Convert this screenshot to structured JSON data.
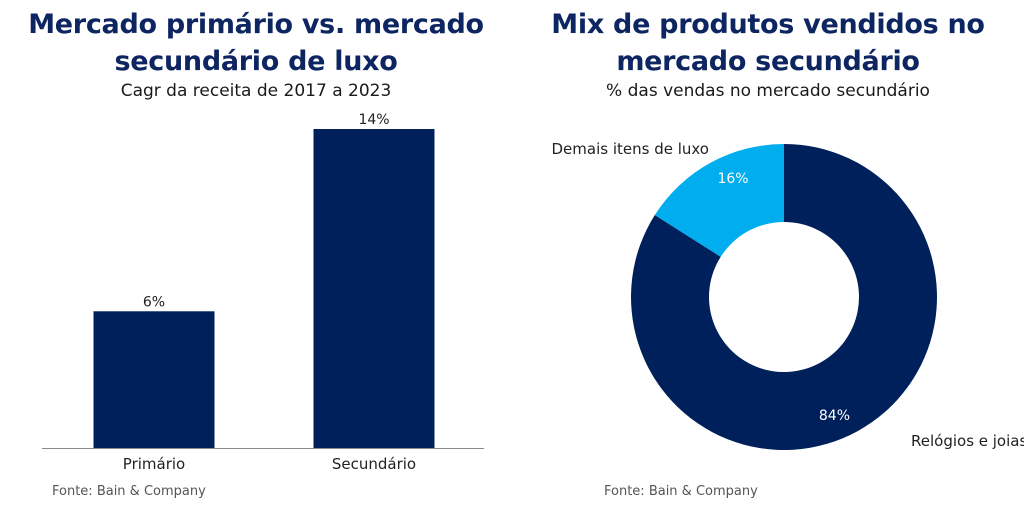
{
  "charts": {
    "left": {
      "title_line1": "Mercado primário vs. mercado",
      "title_line2": "secundário de luxo",
      "subtitle": "Cagr da receita de 2017 a 2023",
      "source": "Fonte: Bain & Company"
    },
    "right": {
      "title_line1": "Mix de produtos vendidos no",
      "title_line2": "mercado secundário",
      "subtitle": "% das vendas no mercado secundário",
      "source": "Fonte: Bain & Company"
    }
  },
  "colors": {
    "navy": "#00205b",
    "lightblue": "#00adef"
  },
  "chart_data": [
    {
      "type": "bar",
      "title": "Mercado primário vs. mercado secundário de luxo",
      "subtitle": "Cagr da receita de 2017 a 2023",
      "categories": [
        "Primário",
        "Secundário"
      ],
      "values": [
        6,
        14
      ],
      "data_labels": [
        "6%",
        "14%"
      ],
      "unit": "%",
      "ylim": [
        0,
        14
      ],
      "grid": false,
      "legend": "none"
    },
    {
      "type": "pie",
      "style": "donut",
      "title": "Mix de produtos vendidos no mercado secundário",
      "subtitle": "% das vendas no mercado secundário",
      "slices": [
        {
          "label": "Relógios e joias",
          "value": 84,
          "value_label": "84%",
          "color": "#00205b"
        },
        {
          "label": "Demais itens de luxo",
          "value": 16,
          "value_label": "16%",
          "color": "#00adef"
        }
      ],
      "legend": "none"
    }
  ]
}
